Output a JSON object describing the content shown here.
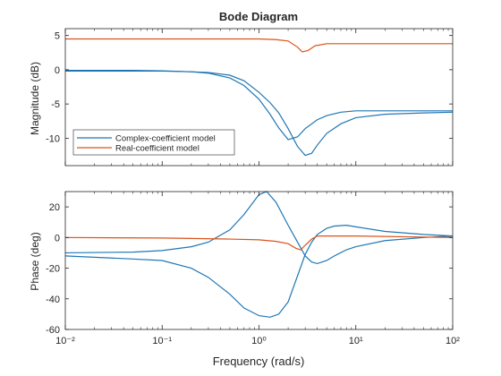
{
  "figure": {
    "title": "Bode Diagram",
    "xlabel": "Frequency (rad/s)",
    "legend_items": [
      "Complex-coefficient model",
      "Real-coefficient model"
    ]
  },
  "colors": {
    "blue": "#1f77b4",
    "orange": "#d95319",
    "axis": "#262626",
    "grid": "#bfbfbf"
  },
  "chart_data": [
    {
      "type": "line",
      "panel": "magnitude",
      "title": "Bode Diagram",
      "ylabel": "Magnitude (dB)",
      "xscale": "log",
      "xlim": [
        0.01,
        100
      ],
      "ylim": [
        -14,
        6
      ],
      "yticks": [
        5,
        0,
        -5,
        -10
      ],
      "legend": "bottom-left",
      "grid": false,
      "series": [
        {
          "name": "Complex-coefficient model",
          "color": "#1f77b4",
          "x": [
            0.01,
            0.05,
            0.1,
            0.2,
            0.3,
            0.5,
            0.7,
            1.0,
            1.3,
            1.6,
            2.0,
            2.5,
            3.0,
            4.0,
            5.0,
            7.0,
            10,
            20,
            50,
            100
          ],
          "y": [
            -0.1,
            -0.1,
            -0.15,
            -0.3,
            -0.5,
            -1.2,
            -2.3,
            -4.3,
            -6.5,
            -8.5,
            -10.2,
            -9.8,
            -8.6,
            -7.3,
            -6.7,
            -6.2,
            -6.0,
            -6.0,
            -6.0,
            -6.0
          ]
        },
        {
          "name": "Complex-coefficient model",
          "color": "#1f77b4",
          "x": [
            0.01,
            0.05,
            0.1,
            0.2,
            0.3,
            0.5,
            0.7,
            1.0,
            1.3,
            1.6,
            2.0,
            2.5,
            3.0,
            3.5,
            4.0,
            5.0,
            7.0,
            10,
            20,
            50,
            100
          ],
          "y": [
            -0.2,
            -0.2,
            -0.2,
            -0.3,
            -0.4,
            -0.8,
            -1.6,
            -3.3,
            -4.8,
            -6.3,
            -8.6,
            -11.2,
            -12.5,
            -12.2,
            -11.0,
            -9.3,
            -7.9,
            -7.0,
            -6.5,
            -6.3,
            -6.2
          ]
        },
        {
          "name": "Real-coefficient model",
          "color": "#d95319",
          "x": [
            0.01,
            0.1,
            0.5,
            1.0,
            1.5,
            2.0,
            2.5,
            2.8,
            3.2,
            3.8,
            5.0,
            10,
            100
          ],
          "y": [
            4.5,
            4.5,
            4.5,
            4.5,
            4.4,
            4.2,
            3.3,
            2.6,
            2.8,
            3.5,
            3.8,
            3.8,
            3.8
          ]
        }
      ]
    },
    {
      "type": "line",
      "panel": "phase",
      "ylabel": "Phase (deg)",
      "xlabel": "Frequency (rad/s)",
      "xscale": "log",
      "xlim": [
        0.01,
        100
      ],
      "ylim": [
        -60,
        30
      ],
      "yticks": [
        20,
        0,
        -20,
        -40,
        -60
      ],
      "xticks": [
        "10⁻²",
        "10⁻¹",
        "10⁰",
        "10¹",
        "10²"
      ],
      "grid": false,
      "series": [
        {
          "name": "Complex-coefficient model",
          "color": "#1f77b4",
          "x": [
            0.01,
            0.05,
            0.1,
            0.2,
            0.3,
            0.5,
            0.7,
            1.0,
            1.2,
            1.5,
            2.0,
            2.5,
            3.0,
            3.5,
            4.0,
            5.0,
            6.0,
            8.0,
            10,
            20,
            50,
            100
          ],
          "y": [
            -10,
            -9.5,
            -8.5,
            -6,
            -3,
            5,
            15,
            28,
            30,
            23,
            8,
            -3,
            -12,
            -16,
            -17,
            -15,
            -12,
            -8,
            -6,
            -2,
            0,
            1
          ]
        },
        {
          "name": "Complex-coefficient model",
          "color": "#1f77b4",
          "x": [
            0.01,
            0.05,
            0.1,
            0.2,
            0.3,
            0.5,
            0.7,
            1.0,
            1.3,
            1.6,
            2.0,
            2.5,
            3.0,
            3.5,
            4.0,
            5.0,
            6.0,
            8.0,
            10,
            20,
            50,
            100
          ],
          "y": [
            -12,
            -14,
            -15,
            -20,
            -26,
            -37,
            -46,
            -51,
            -52,
            -50,
            -42,
            -25,
            -11,
            -3,
            2,
            6,
            7.5,
            8,
            7,
            4,
            2,
            1
          ]
        },
        {
          "name": "Real-coefficient model",
          "color": "#d95319",
          "x": [
            0.01,
            0.1,
            0.5,
            1.0,
            1.5,
            2.0,
            2.4,
            2.7,
            3.0,
            3.5,
            4.0,
            5.0,
            10,
            100
          ],
          "y": [
            0,
            -0.3,
            -1,
            -1.5,
            -2.5,
            -4,
            -7,
            -8,
            -5,
            -1,
            1,
            1,
            1,
            0
          ]
        }
      ]
    }
  ]
}
